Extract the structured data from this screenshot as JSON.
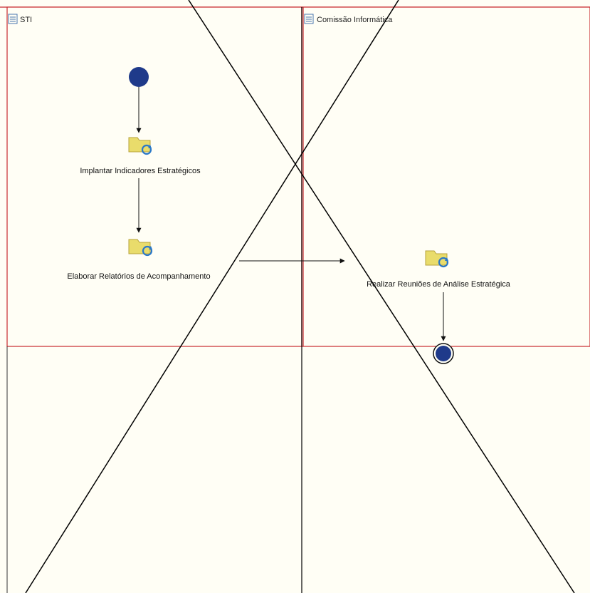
{
  "lanes": [
    {
      "title": "STI",
      "icon": "lane-list-icon"
    },
    {
      "title": "Comissão Informática",
      "icon": "lane-list-icon"
    }
  ],
  "activities": [
    {
      "label": "Implantar Indicadores Estratégicos",
      "icon": "subprocess-activity-icon"
    },
    {
      "label": "Elaborar Relatórios de Acompanhamento",
      "icon": "subprocess-activity-icon"
    },
    {
      "label": "Realizar Reuniões de Análise Estratégica",
      "icon": "subprocess-activity-icon"
    }
  ],
  "events": {
    "start": "start-event-icon",
    "end": "end-event-icon"
  },
  "colors": {
    "background": "#fffef5",
    "lane_border": "#c8282d",
    "divider": "#000000",
    "event_fill": "#1f3a8a",
    "activity_folder": "#e9dc6b",
    "activity_refresh": "#2a78c8"
  }
}
